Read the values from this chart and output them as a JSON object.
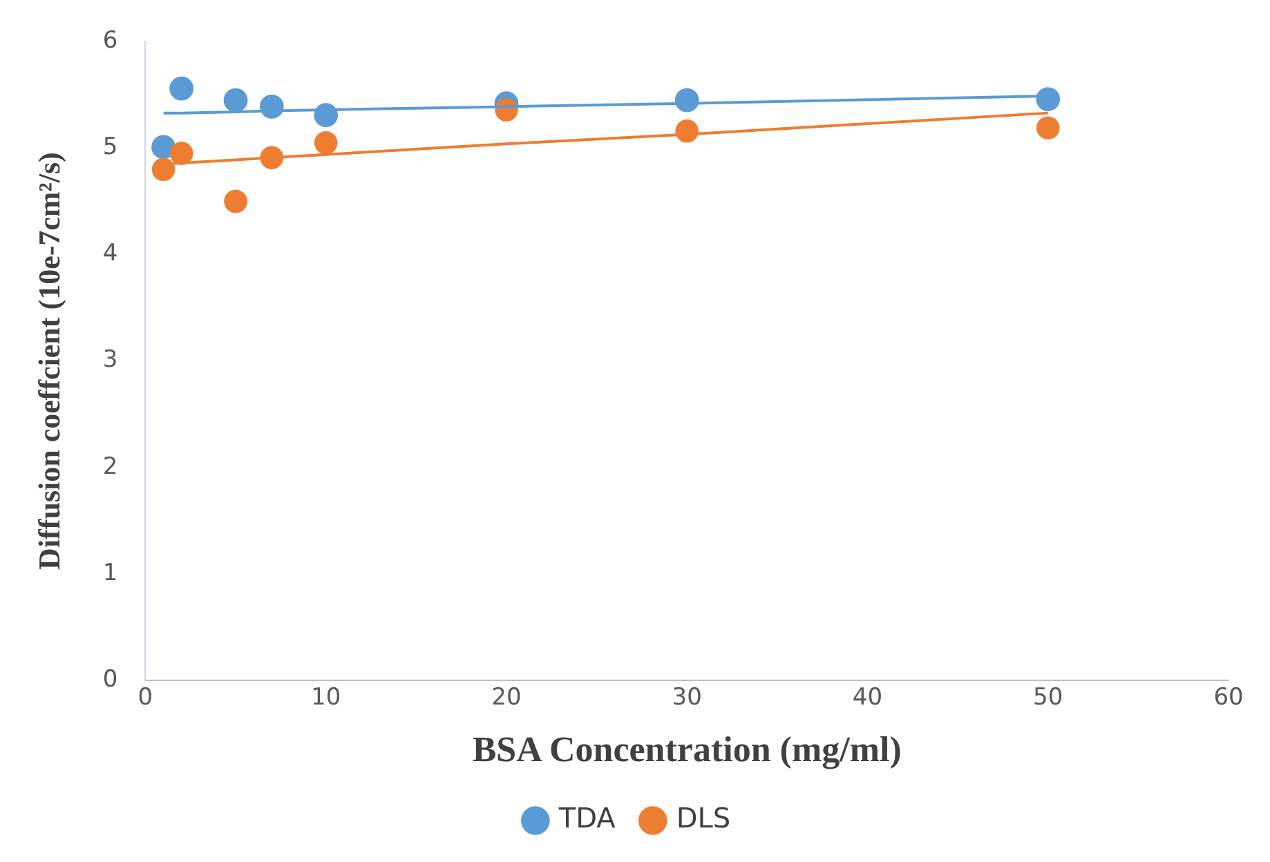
{
  "chart_data": {
    "type": "scatter",
    "xlabel": "BSA Concentration (mg/ml)",
    "ylabel": "Diffusion coeffcient (10e-7cm²/s)",
    "x": [
      1,
      2,
      5,
      7,
      10,
      20,
      30,
      50
    ],
    "series": [
      {
        "name": "TDA",
        "color": "#5b9bd5",
        "values": [
          5.01,
          5.56,
          5.45,
          5.39,
          5.31,
          5.42,
          5.45,
          5.46
        ]
      },
      {
        "name": "DLS",
        "color": "#ed7d31",
        "values": [
          4.8,
          4.95,
          4.5,
          4.91,
          5.05,
          5.36,
          5.16,
          5.19
        ]
      },
      {
        "type": "line",
        "marker": "none",
        "color": "#5b9bd5",
        "values": [
          5.33,
          5.33,
          5.34,
          5.35,
          5.36,
          5.39,
          5.42,
          5.49
        ]
      },
      {
        "type": "line",
        "marker": "none",
        "color": "#ed7d31",
        "values": [
          4.85,
          4.86,
          4.89,
          4.91,
          4.94,
          5.04,
          5.13,
          5.33
        ]
      }
    ],
    "xlim": [
      0,
      60
    ],
    "xticks": [
      0,
      10,
      20,
      30,
      40,
      50,
      60
    ],
    "ylim": [
      0,
      6
    ],
    "yticks": [
      0,
      1,
      2,
      3,
      4,
      5,
      6
    ],
    "grid": false,
    "legend": "bottom",
    "marker": "circle"
  }
}
